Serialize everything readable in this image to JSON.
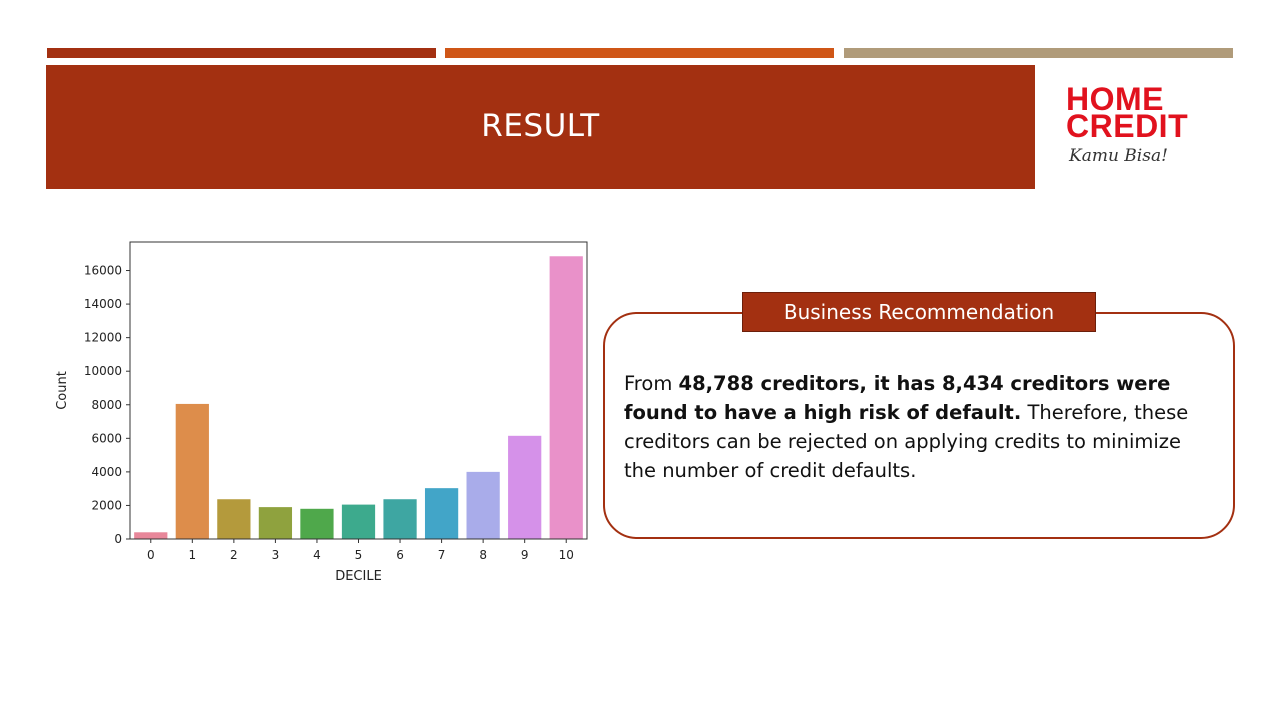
{
  "header": {
    "title": "RESULT"
  },
  "logo": {
    "line1": "HOME",
    "line2": "CREDIT",
    "tagline": "Kamu Bisa!"
  },
  "callout": {
    "heading": "Business Recommendation",
    "text_1": "From ",
    "bold_1": "48,788 creditors, it has 8,434 creditors were found to have a high risk of default.",
    "text_2": " Therefore, these creditors can be rejected on applying credits to minimize the number of credit defaults."
  },
  "colors": {
    "accent": "#a33011",
    "stripe_2": "#cf5617",
    "stripe_3": "#b09b7a",
    "logo_red": "#e1121e"
  },
  "chart_data": {
    "type": "bar",
    "xlabel": "DECILE",
    "ylabel": "Count",
    "categories": [
      "0",
      "1",
      "2",
      "3",
      "4",
      "5",
      "6",
      "7",
      "8",
      "9",
      "10"
    ],
    "values": [
      400,
      8050,
      2370,
      1900,
      1800,
      2050,
      2370,
      3030,
      4000,
      6150,
      16850
    ],
    "bar_colors": [
      "#e8879a",
      "#dd8d4b",
      "#b49a3c",
      "#8fa23e",
      "#4fa84b",
      "#3daa8d",
      "#3ea6a2",
      "#42a5c8",
      "#a9acea",
      "#d591e9",
      "#e991c9"
    ],
    "yticks": [
      0,
      2000,
      4000,
      6000,
      8000,
      10000,
      12000,
      14000,
      16000
    ],
    "ylim": [
      0,
      17700
    ],
    "grid": false,
    "legend": false
  }
}
